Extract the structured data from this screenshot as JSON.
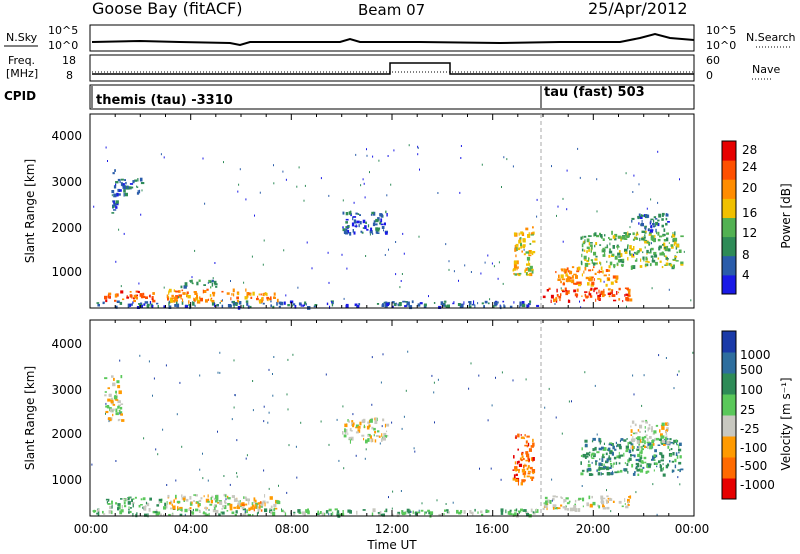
{
  "header": {
    "station": "Goose Bay (fitACF)",
    "beam": "Beam 07",
    "date": "25/Apr/2012"
  },
  "top_panels": {
    "nsky_label": "N.Sky",
    "nsky_ticks": [
      "10^5",
      "10^0"
    ],
    "nsearch_label": "N.Search",
    "nsearch_ticks": [
      "10^5",
      "10^0"
    ],
    "freq_label_line1": "Freq.",
    "freq_label_line2": "[MHz]",
    "freq_ticks": [
      "18",
      "8"
    ],
    "nave_label": "Nave",
    "nave_ticks": [
      "60",
      "0"
    ],
    "cpid_label": "CPID",
    "cpid_entries": [
      {
        "text": "themis (tau) -3310",
        "start_hour": 0
      },
      {
        "text": "tau (fast) 503",
        "start_hour": 18
      }
    ]
  },
  "power_panel": {
    "ylabel": "Slant Range [km]",
    "yticks": [
      "4000",
      "3000",
      "2000",
      "1000"
    ],
    "colorbar_label": "Power [dB]",
    "colorbar_ticks": [
      "28",
      "24",
      "20",
      "16",
      "12",
      "8",
      "4"
    ],
    "colors": [
      "#1a1ae6",
      "#2a5caa",
      "#2e8b57",
      "#52b152",
      "#f0c000",
      "#ff8c00",
      "#ff5000",
      "#e60000"
    ]
  },
  "velocity_panel": {
    "ylabel": "Slant Range [km]",
    "yticks": [
      "4000",
      "3000",
      "2000",
      "1000"
    ],
    "colorbar_label": "Velocity [m s⁻¹]",
    "colorbar_ticks": [
      "1000",
      "500",
      "100",
      "25",
      "-25",
      "-100",
      "-500",
      "-1000"
    ],
    "colors": [
      "#1a3aa8",
      "#2e6e9e",
      "#2e8b57",
      "#5ac85a",
      "#c8c8c0",
      "#ff9a00",
      "#ff6a00",
      "#e60000"
    ]
  },
  "time_axis": {
    "ticks": [
      "00:00",
      "04:00",
      "08:00",
      "12:00",
      "16:00",
      "20:00",
      "00:00"
    ],
    "xlabel": "Time UT"
  },
  "chart_data": [
    {
      "type": "heatmap",
      "title": "Power",
      "x_range_hours": [
        0,
        24
      ],
      "y_range_km": [
        180,
        4500
      ],
      "value_range_db": [
        0,
        30
      ],
      "regions": [
        {
          "t0": 0.0,
          "t1": 17.9,
          "r0": 200,
          "r1": 330,
          "level": 1
        },
        {
          "t0": 0.5,
          "t1": 2.5,
          "r0": 330,
          "r1": 560,
          "level": 6
        },
        {
          "t0": 3.0,
          "t1": 7.5,
          "r0": 330,
          "r1": 600,
          "level": 5
        },
        {
          "t0": 3.5,
          "t1": 5.0,
          "r0": 640,
          "r1": 800,
          "level": 2
        },
        {
          "t0": 0.8,
          "t1": 1.1,
          "r0": 2300,
          "r1": 3300,
          "level": 1
        },
        {
          "t0": 1.1,
          "t1": 2.0,
          "r0": 2700,
          "r1": 3100,
          "level": 1
        },
        {
          "t0": 10.0,
          "t1": 11.8,
          "r0": 1850,
          "r1": 2350,
          "level": 1
        },
        {
          "t0": 16.8,
          "t1": 17.6,
          "r0": 900,
          "r1": 2000,
          "level": 4
        },
        {
          "t0": 18.0,
          "t1": 21.5,
          "r0": 330,
          "r1": 620,
          "level": 6
        },
        {
          "t0": 18.5,
          "t1": 21.0,
          "r0": 700,
          "r1": 1100,
          "level": 5
        },
        {
          "t0": 19.5,
          "t1": 23.5,
          "r0": 1100,
          "r1": 1900,
          "level": 3
        },
        {
          "t0": 21.5,
          "t1": 23.0,
          "r0": 1900,
          "r1": 2300,
          "level": 1
        }
      ]
    },
    {
      "type": "heatmap",
      "title": "Velocity",
      "x_range_hours": [
        0,
        24
      ],
      "y_range_km": [
        180,
        4500
      ],
      "value_range_ms": [
        -1000,
        1000
      ],
      "regions": [
        {
          "t0": 0.0,
          "t1": 17.9,
          "r0": 200,
          "r1": 330,
          "level": 3
        },
        {
          "t0": 0.5,
          "t1": 3.0,
          "r0": 330,
          "r1": 600,
          "level": 3
        },
        {
          "t0": 3.0,
          "t1": 7.5,
          "r0": 330,
          "r1": 650,
          "level": 4
        },
        {
          "t0": 5.5,
          "t1": 7.0,
          "r0": 300,
          "r1": 500,
          "level": 5
        },
        {
          "t0": 0.5,
          "t1": 1.2,
          "r0": 2300,
          "r1": 3300,
          "level": 4
        },
        {
          "t0": 10.0,
          "t1": 11.8,
          "r0": 1850,
          "r1": 2350,
          "level": 4
        },
        {
          "t0": 16.8,
          "t1": 17.6,
          "r0": 900,
          "r1": 2000,
          "level": 6
        },
        {
          "t0": 18.0,
          "t1": 21.5,
          "r0": 330,
          "r1": 620,
          "level": 4
        },
        {
          "t0": 19.5,
          "t1": 23.5,
          "r0": 1100,
          "r1": 1900,
          "level": 2
        },
        {
          "t0": 21.5,
          "t1": 23.0,
          "r0": 1700,
          "r1": 2300,
          "level": 4
        }
      ]
    }
  ]
}
